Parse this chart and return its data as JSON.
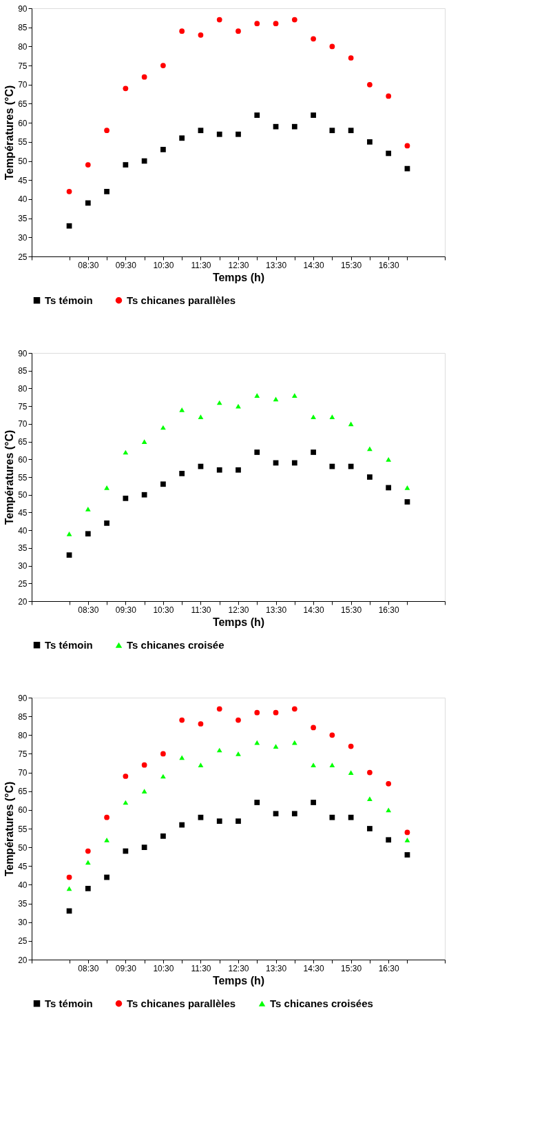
{
  "chart_data": [
    {
      "type": "scatter",
      "xlabel": "Temps (h)",
      "ylabel": "Températures (°C)",
      "x": [
        8,
        8.5,
        9,
        9.5,
        10,
        10.5,
        11,
        11.5,
        12,
        12.5,
        13,
        13.5,
        14,
        14.5,
        15,
        15.5,
        16,
        16.5,
        17
      ],
      "xlim": [
        7,
        18
      ],
      "xticks": [
        {
          "value": 7,
          "label": null
        },
        {
          "value": 8,
          "label": null
        },
        {
          "value": 8.5,
          "label": "08:30"
        },
        {
          "value": 9,
          "label": null
        },
        {
          "value": 9.5,
          "label": "09:30"
        },
        {
          "value": 10,
          "label": null
        },
        {
          "value": 10.5,
          "label": "10:30"
        },
        {
          "value": 11,
          "label": null
        },
        {
          "value": 11.5,
          "label": "11:30"
        },
        {
          "value": 12,
          "label": null
        },
        {
          "value": 12.5,
          "label": "12:30"
        },
        {
          "value": 13,
          "label": null
        },
        {
          "value": 13.5,
          "label": "13:30"
        },
        {
          "value": 14,
          "label": null
        },
        {
          "value": 14.5,
          "label": "14:30"
        },
        {
          "value": 15,
          "label": null
        },
        {
          "value": 15.5,
          "label": "15:30"
        },
        {
          "value": 16,
          "label": null
        },
        {
          "value": 16.5,
          "label": "16:30"
        },
        {
          "value": 17,
          "label": null
        },
        {
          "value": 18,
          "label": null
        }
      ],
      "ylim": [
        25,
        90
      ],
      "yticks": [
        25,
        30,
        35,
        40,
        45,
        50,
        55,
        60,
        65,
        70,
        75,
        80,
        85,
        90
      ],
      "grid": false,
      "legend": "bottom",
      "series": [
        {
          "name": "Ts témoin",
          "color": "#000000",
          "marker": "square",
          "values": [
            33,
            39,
            42,
            49,
            50,
            53,
            56,
            58,
            57,
            57,
            62,
            59,
            59,
            62,
            58,
            58,
            55,
            52,
            48
          ]
        },
        {
          "name": "Ts chicanes parallèles",
          "color": "#ff0000",
          "marker": "circle",
          "values": [
            42,
            49,
            58,
            69,
            72,
            75,
            84,
            83,
            87,
            84,
            86,
            86,
            87,
            82,
            80,
            77,
            70,
            67,
            54
          ]
        }
      ]
    },
    {
      "type": "scatter",
      "xlabel": "Temps (h)",
      "ylabel": "Températures (°C)",
      "x": [
        8,
        8.5,
        9,
        9.5,
        10,
        10.5,
        11,
        11.5,
        12,
        12.5,
        13,
        13.5,
        14,
        14.5,
        15,
        15.5,
        16,
        16.5,
        17
      ],
      "xlim": [
        7,
        18
      ],
      "xticks": [
        {
          "value": 7,
          "label": null
        },
        {
          "value": 8,
          "label": null
        },
        {
          "value": 8.5,
          "label": "08:30"
        },
        {
          "value": 9,
          "label": null
        },
        {
          "value": 9.5,
          "label": "09:30"
        },
        {
          "value": 10,
          "label": null
        },
        {
          "value": 10.5,
          "label": "10:30"
        },
        {
          "value": 11,
          "label": null
        },
        {
          "value": 11.5,
          "label": "11:30"
        },
        {
          "value": 12,
          "label": null
        },
        {
          "value": 12.5,
          "label": "12:30"
        },
        {
          "value": 13,
          "label": null
        },
        {
          "value": 13.5,
          "label": "13:30"
        },
        {
          "value": 14,
          "label": null
        },
        {
          "value": 14.5,
          "label": "14:30"
        },
        {
          "value": 15,
          "label": null
        },
        {
          "value": 15.5,
          "label": "15:30"
        },
        {
          "value": 16,
          "label": null
        },
        {
          "value": 16.5,
          "label": "16:30"
        },
        {
          "value": 17,
          "label": null
        },
        {
          "value": 18,
          "label": null
        }
      ],
      "ylim": [
        20,
        90
      ],
      "yticks": [
        20,
        25,
        30,
        35,
        40,
        45,
        50,
        55,
        60,
        65,
        70,
        75,
        80,
        85,
        90
      ],
      "grid": false,
      "legend": "bottom",
      "series": [
        {
          "name": "Ts témoin",
          "color": "#000000",
          "marker": "square",
          "values": [
            33,
            39,
            42,
            49,
            50,
            53,
            56,
            58,
            57,
            57,
            62,
            59,
            59,
            62,
            58,
            58,
            55,
            52,
            48
          ]
        },
        {
          "name": "Ts chicanes croisée",
          "color": "#00ff00",
          "marker": "triangle",
          "values": [
            39,
            46,
            52,
            62,
            65,
            69,
            74,
            72,
            76,
            75,
            78,
            77,
            78,
            72,
            72,
            70,
            63,
            60,
            52
          ]
        }
      ]
    },
    {
      "type": "scatter",
      "xlabel": "Temps (h)",
      "ylabel": "Températures (°C)",
      "x": [
        8,
        8.5,
        9,
        9.5,
        10,
        10.5,
        11,
        11.5,
        12,
        12.5,
        13,
        13.5,
        14,
        14.5,
        15,
        15.5,
        16,
        16.5,
        17
      ],
      "xlim": [
        7,
        18
      ],
      "xticks": [
        {
          "value": 7,
          "label": null
        },
        {
          "value": 8,
          "label": null
        },
        {
          "value": 8.5,
          "label": "08:30"
        },
        {
          "value": 9,
          "label": null
        },
        {
          "value": 9.5,
          "label": "09:30"
        },
        {
          "value": 10,
          "label": null
        },
        {
          "value": 10.5,
          "label": "10:30"
        },
        {
          "value": 11,
          "label": null
        },
        {
          "value": 11.5,
          "label": "11:30"
        },
        {
          "value": 12,
          "label": null
        },
        {
          "value": 12.5,
          "label": "12:30"
        },
        {
          "value": 13,
          "label": null
        },
        {
          "value": 13.5,
          "label": "13:30"
        },
        {
          "value": 14,
          "label": null
        },
        {
          "value": 14.5,
          "label": "14:30"
        },
        {
          "value": 15,
          "label": null
        },
        {
          "value": 15.5,
          "label": "15:30"
        },
        {
          "value": 16,
          "label": null
        },
        {
          "value": 16.5,
          "label": "16:30"
        },
        {
          "value": 17,
          "label": null
        },
        {
          "value": 18,
          "label": null
        }
      ],
      "ylim": [
        20,
        90
      ],
      "yticks": [
        20,
        25,
        30,
        35,
        40,
        45,
        50,
        55,
        60,
        65,
        70,
        75,
        80,
        85,
        90
      ],
      "grid": false,
      "legend": "bottom",
      "series": [
        {
          "name": "Ts témoin",
          "color": "#000000",
          "marker": "square",
          "values": [
            33,
            39,
            42,
            49,
            50,
            53,
            56,
            58,
            57,
            57,
            62,
            59,
            59,
            62,
            58,
            58,
            55,
            52,
            48
          ]
        },
        {
          "name": "Ts chicanes parallèles",
          "color": "#ff0000",
          "marker": "circle",
          "values": [
            42,
            49,
            58,
            69,
            72,
            75,
            84,
            83,
            87,
            84,
            86,
            86,
            87,
            82,
            80,
            77,
            70,
            67,
            54
          ]
        },
        {
          "name": "Ts chicanes croisées",
          "color": "#00ff00",
          "marker": "triangle",
          "values": [
            39,
            46,
            52,
            62,
            65,
            69,
            74,
            72,
            76,
            75,
            78,
            77,
            78,
            72,
            72,
            70,
            63,
            60,
            52
          ]
        }
      ]
    }
  ]
}
